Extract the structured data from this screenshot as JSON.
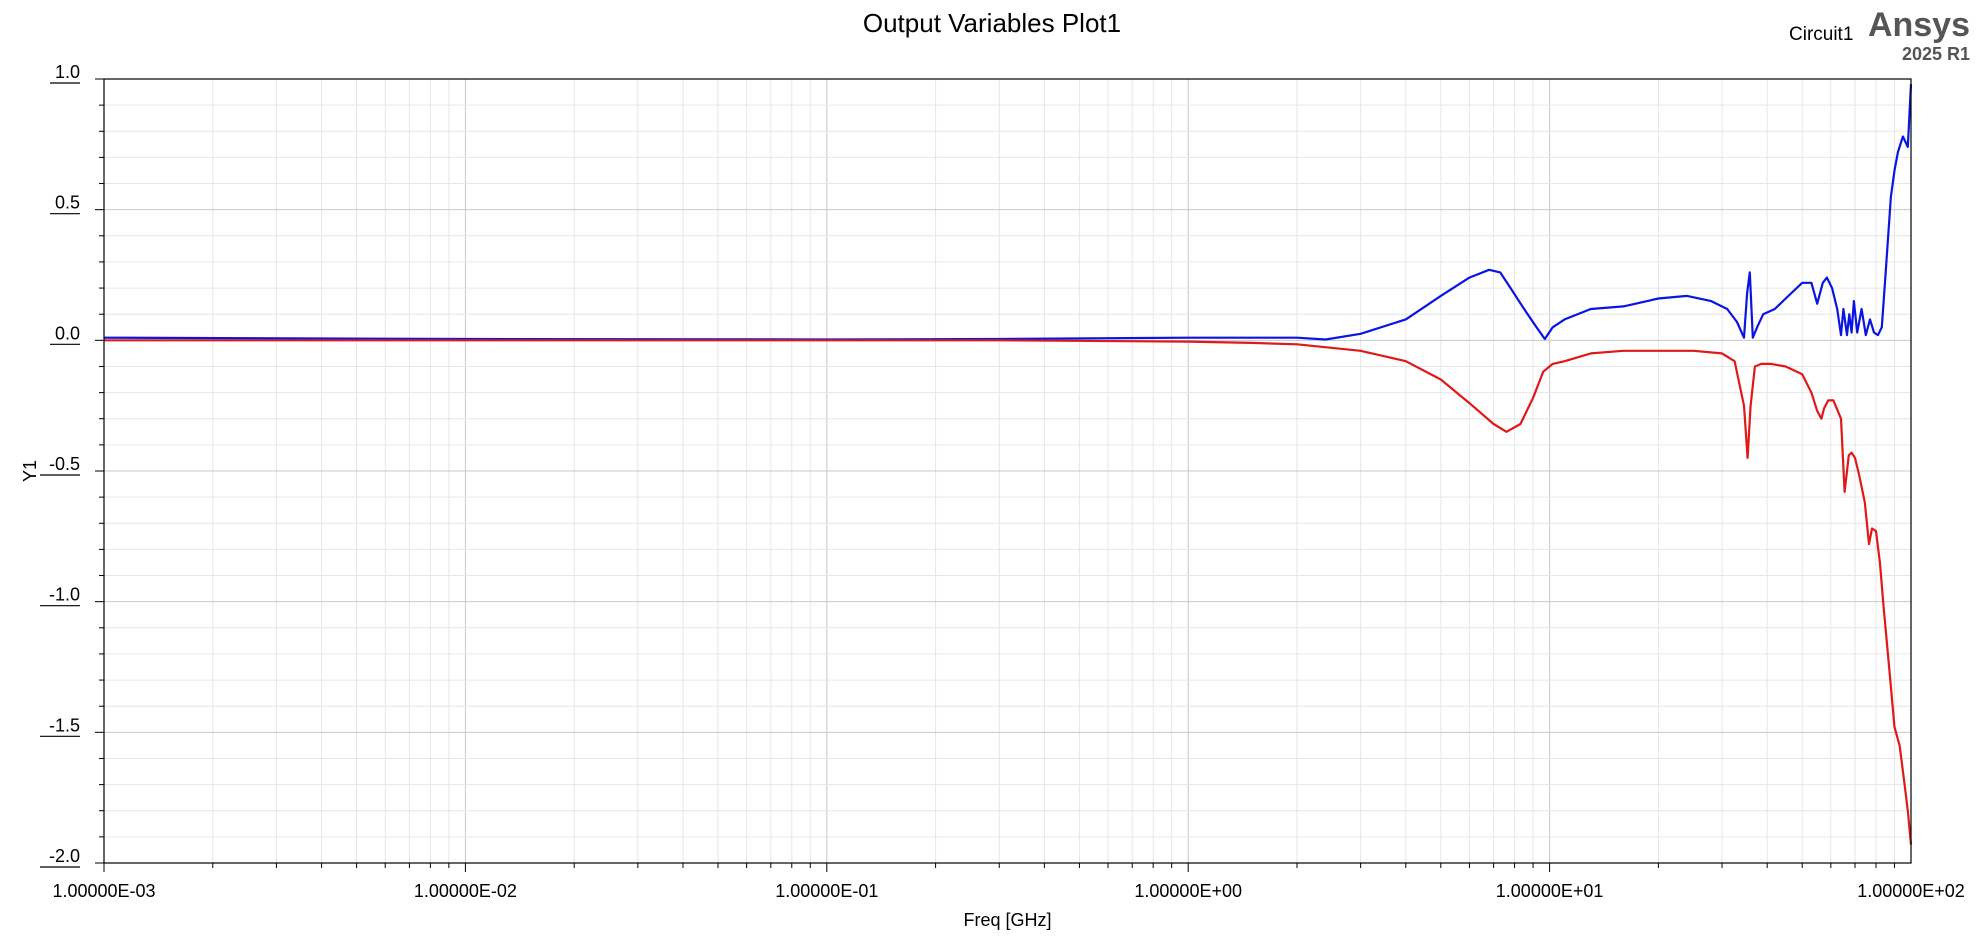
{
  "header": {
    "title": "Output Variables Plot1",
    "design": "Circuit1",
    "brand": "Ansys",
    "version": "2025 R1"
  },
  "chart_data": {
    "type": "line",
    "title": "Output Variables Plot1",
    "xlabel": "Freq [GHz]",
    "ylabel": "Y1",
    "xscale": "log",
    "xlim": [
      0.001,
      100
    ],
    "ylim": [
      -2.0,
      1.0
    ],
    "grid": true,
    "x_tick_labels": [
      "1.00000E-03",
      "1.00000E-02",
      "1.00000E-01",
      "1.00000E+00",
      "1.00000E+01",
      "1.00000E+02"
    ],
    "y_tick_labels": [
      "1.0",
      "0.5",
      "0.0",
      "-0.5",
      "-1.0",
      "-1.5",
      "-2.0"
    ],
    "series": [
      {
        "color": "#0a14e6",
        "x": [
          0.001,
          0.01,
          0.1,
          0.3,
          1.0,
          2.0,
          2.4,
          3.0,
          4.0,
          5.0,
          6.0,
          6.8,
          7.3,
          7.8,
          8.5,
          9.2,
          9.7,
          10.2,
          11,
          13,
          16,
          20,
          24,
          28,
          31,
          33,
          34.5,
          35.2,
          35.8,
          36.5,
          37.5,
          39,
          42,
          45,
          50,
          53,
          55,
          57,
          58.5,
          60.5,
          62.5,
          64,
          65,
          66.5,
          67.5,
          68.5,
          69.5,
          71,
          73,
          75,
          77,
          79,
          81,
          83,
          85,
          88,
          90,
          92,
          95,
          98,
          100
        ],
        "values": [
          0.01,
          0.005,
          0.003,
          0.005,
          0.01,
          0.01,
          0.003,
          0.025,
          0.08,
          0.17,
          0.24,
          0.27,
          0.26,
          0.2,
          0.12,
          0.05,
          0.005,
          0.05,
          0.08,
          0.12,
          0.13,
          0.16,
          0.17,
          0.15,
          0.12,
          0.07,
          0.01,
          0.18,
          0.26,
          0.01,
          0.05,
          0.1,
          0.12,
          0.16,
          0.22,
          0.22,
          0.14,
          0.22,
          0.24,
          0.2,
          0.12,
          0.02,
          0.12,
          0.02,
          0.1,
          0.03,
          0.15,
          0.03,
          0.12,
          0.02,
          0.08,
          0.03,
          0.02,
          0.05,
          0.25,
          0.55,
          0.65,
          0.72,
          0.78,
          0.74,
          0.98
        ]
      },
      {
        "color": "#e01818",
        "x": [
          0.001,
          0.01,
          0.1,
          0.3,
          1.0,
          1.5,
          2.0,
          3.0,
          4.0,
          5.0,
          6.0,
          7.0,
          7.6,
          8.3,
          9.0,
          9.6,
          10.2,
          11,
          13,
          16,
          20,
          25,
          30,
          32.5,
          34.5,
          35.3,
          36,
          37,
          38.5,
          41,
          45,
          50,
          53,
          55,
          56.5,
          57.5,
          59,
          61,
          64,
          65.5,
          66.5,
          67.3,
          68.5,
          70,
          72,
          74.5,
          76.5,
          78,
          80,
          82,
          84,
          87,
          90,
          93,
          96,
          98,
          100
        ],
        "values": [
          0.0,
          0.0,
          0.0,
          0.0,
          -0.005,
          -0.01,
          -0.015,
          -0.04,
          -0.08,
          -0.15,
          -0.24,
          -0.32,
          -0.35,
          -0.32,
          -0.22,
          -0.12,
          -0.09,
          -0.08,
          -0.05,
          -0.04,
          -0.04,
          -0.04,
          -0.05,
          -0.08,
          -0.25,
          -0.45,
          -0.25,
          -0.1,
          -0.09,
          -0.09,
          -0.1,
          -0.13,
          -0.2,
          -0.27,
          -0.3,
          -0.26,
          -0.23,
          -0.23,
          -0.3,
          -0.58,
          -0.5,
          -0.44,
          -0.43,
          -0.45,
          -0.52,
          -0.62,
          -0.78,
          -0.72,
          -0.73,
          -0.85,
          -1.02,
          -1.25,
          -1.48,
          -1.55,
          -1.7,
          -1.8,
          -1.93
        ]
      }
    ]
  }
}
